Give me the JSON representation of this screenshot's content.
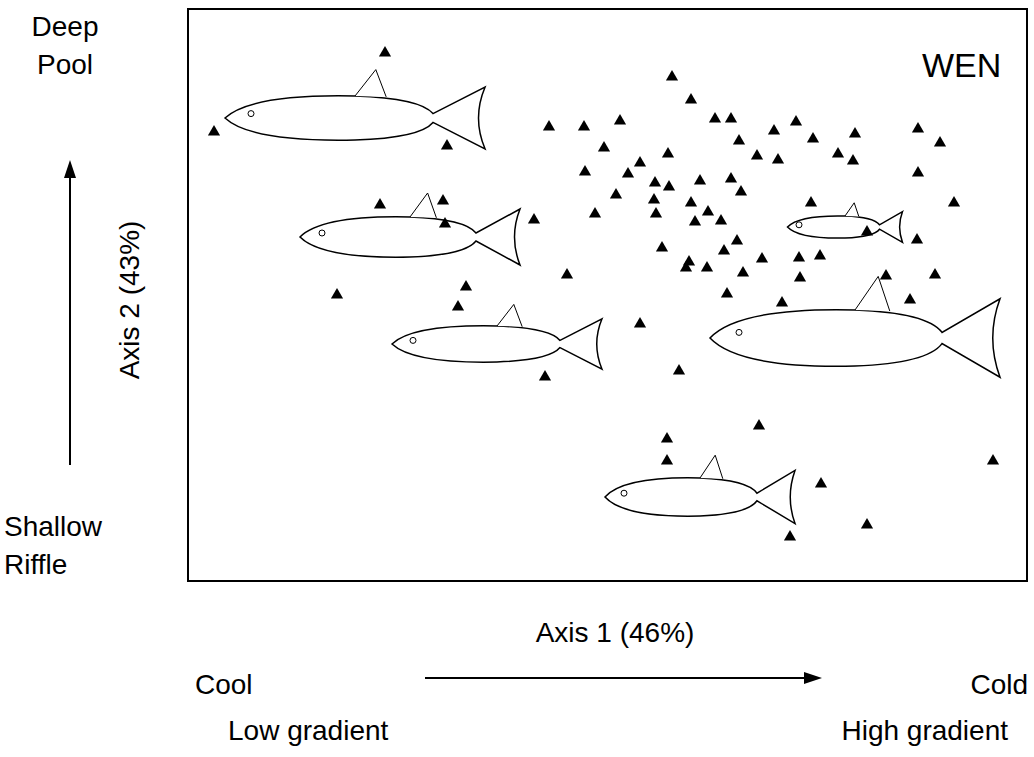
{
  "chart_data": {
    "type": "scatter",
    "title": "WEN",
    "x_label": "Axis 1 (46%)",
    "y_label": "Axis 2 (43%)",
    "y_high_label": [
      "Deep",
      "Pool"
    ],
    "y_low_label": [
      "Shallow",
      "Riffle"
    ],
    "x_low_label": [
      "Cool",
      "Low gradient"
    ],
    "x_high_label": [
      "Cold",
      "High gradient"
    ],
    "xlim": [
      0,
      841
    ],
    "ylim": [
      0,
      574
    ],
    "tick_labels": false,
    "grid": false,
    "color": "#000000",
    "marker": "triangle",
    "x": [
      198,
      27,
      260,
      362,
      397,
      433,
      417,
      485,
      504,
      528,
      544,
      552,
      587,
      609,
      626,
      668,
      731,
      753,
      570,
      591,
      651,
      666,
      481,
      453,
      398,
      441,
      468,
      482,
      513,
      544,
      554,
      504,
      429,
      408,
      467,
      469,
      521,
      550,
      537,
      502,
      520,
      475,
      347,
      193,
      256,
      258,
      624,
      731,
      767,
      730,
      680,
      633,
      612,
      575,
      699,
      748,
      723,
      613,
      595,
      540,
      499,
      380,
      279,
      271,
      150,
      453,
      358,
      492,
      480,
      480,
      572,
      634,
      680,
      603,
      806,
      534,
      556,
      508
    ],
    "values": [
      529,
      450,
      436,
      455,
      455,
      461,
      434,
      505,
      482,
      463,
      463,
      441,
      451,
      460,
      443,
      448,
      453,
      439,
      426,
      422,
      428,
      421,
      428,
      419,
      410,
      408,
      399,
      395,
      401,
      403,
      390,
      379,
      387,
      368,
      382,
      368,
      370,
      341,
      331,
      320,
      314,
      334,
      362,
      377,
      381,
      358,
      379,
      409,
      379,
      342,
      350,
      326,
      324,
      323,
      306,
      307,
      282,
      304,
      279,
      288,
      314,
      307,
      295,
      275,
      287,
      258,
      205,
      211,
      143,
      121,
      156,
      98,
      57,
      45,
      121,
      361,
      309,
      360
    ]
  }
}
